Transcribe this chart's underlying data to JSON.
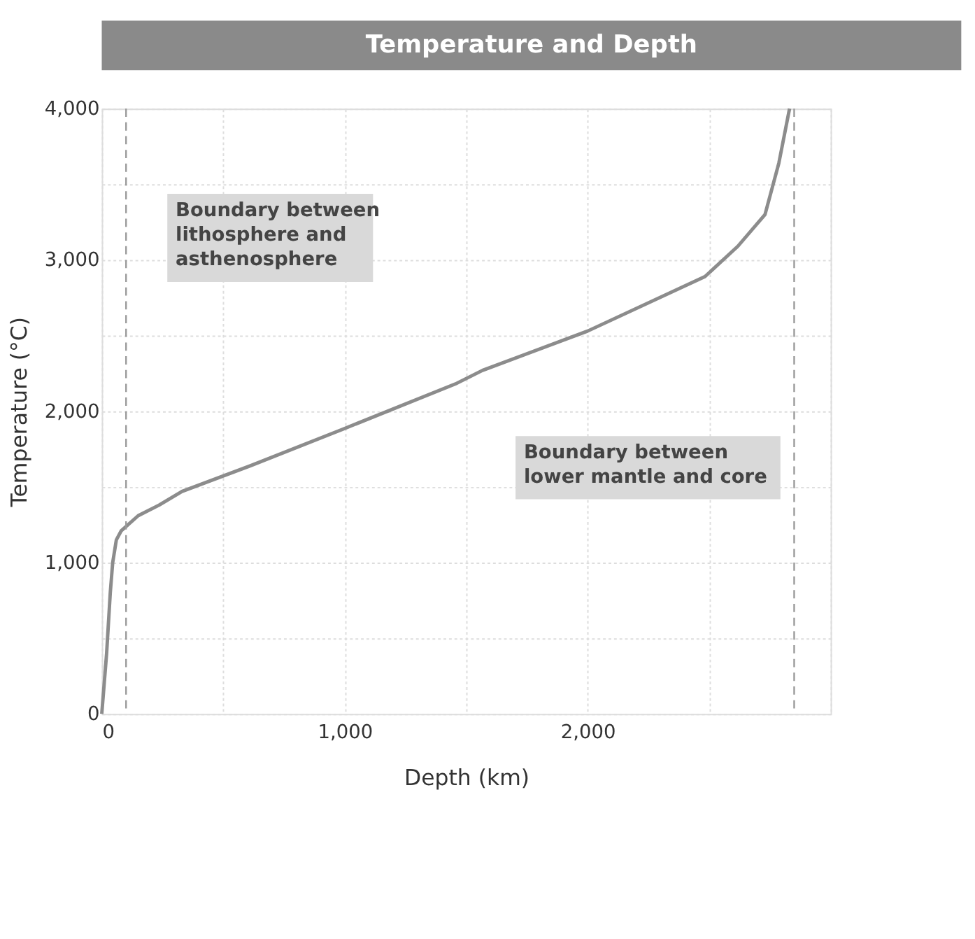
{
  "chart_data": {
    "type": "line",
    "title": "Temperature and Depth",
    "xlabel": "Depth (km)",
    "ylabel": "Temperature (°C)",
    "x": [
      0,
      20,
      35,
      45,
      60,
      80,
      150,
      236,
      330,
      612,
      990,
      1455,
      1567,
      2000,
      2483,
      2618,
      2730,
      2787,
      2831
    ],
    "series": [
      {
        "color": "#8c8c8c",
        "values": [
          0,
          400,
          800,
          1000,
          1150,
          1210,
          1310,
          1380,
          1470,
          1640,
          1880,
          2180,
          2270,
          2530,
          2890,
          3090,
          3300,
          3640,
          4000
        ]
      }
    ],
    "xlim": [
      0,
      3000
    ],
    "ylim": [
      0,
      4000
    ],
    "xticks": [
      0,
      {
        "value": 500,
        "label": null
      },
      {
        "value": 1000,
        "label": "1,000"
      },
      {
        "value": 1500,
        "label": null
      },
      {
        "value": 2000,
        "label": "2,000"
      },
      {
        "value": 2500,
        "label": null
      },
      {
        "value": 3000,
        "label": null
      }
    ],
    "yticks": [
      0,
      {
        "value": 500,
        "label": null
      },
      {
        "value": 1000,
        "label": "1,000"
      },
      {
        "value": 1500,
        "label": null
      },
      {
        "value": 2000,
        "label": "2,000"
      },
      {
        "value": 2500,
        "label": null
      },
      {
        "value": 3000,
        "label": "3,000"
      },
      {
        "value": 3500,
        "label": null
      },
      {
        "value": 4000,
        "label": "4,000"
      }
    ],
    "grid": true,
    "marker": "none",
    "line_style": "solid",
    "legend": false,
    "ref_lines": [
      {
        "axis": "x",
        "value": 100,
        "label": "Boundary between lithosphere and asthenosphere",
        "color": "#9a9a9a",
        "line_style": "dashed"
      },
      {
        "axis": "x",
        "value": 2850,
        "label": "Boundary between lower mantle and core",
        "color": "#9a9a9a",
        "line_style": "dashed"
      }
    ]
  }
}
